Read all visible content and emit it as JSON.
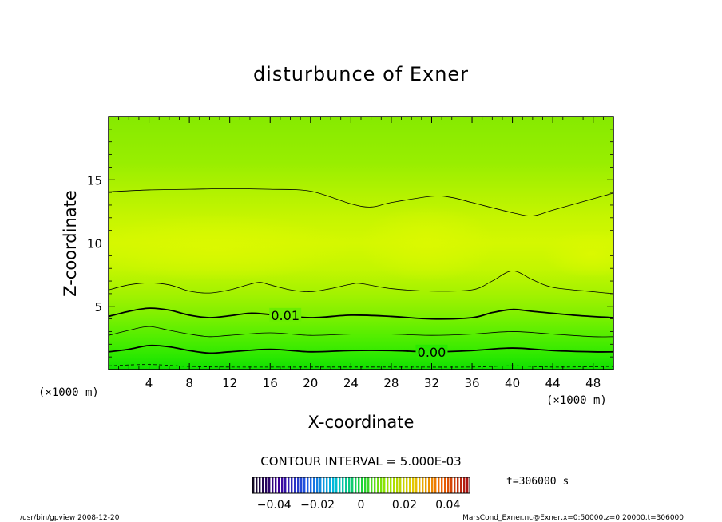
{
  "chart_data": {
    "type": "heatmap",
    "title": "disturbunce of Exner",
    "xlabel": "X-coordinate",
    "ylabel": "Z-coordinate",
    "x_unit_label": "(×1000 m)",
    "y_unit_label": "(×1000 m)",
    "xlim": [
      0,
      50
    ],
    "ylim": [
      0,
      20
    ],
    "x_ticks": [
      4,
      8,
      12,
      16,
      20,
      24,
      28,
      32,
      36,
      40,
      44,
      48
    ],
    "x_tick_labels": [
      "4",
      "8",
      "12",
      "16",
      "20",
      "24",
      "28",
      "32",
      "36",
      "40",
      "44",
      "48"
    ],
    "y_ticks": [
      5,
      10,
      15
    ],
    "y_tick_labels": [
      "5",
      "10",
      "15"
    ],
    "contour_labels": [
      {
        "text": "0.01",
        "x": 17.5,
        "z": 4.3
      },
      {
        "text": "0.00",
        "x": 32.0,
        "z": 1.4
      }
    ],
    "contours": [
      {
        "level": -0.005,
        "style": "dashed",
        "points": [
          [
            0,
            0.3
          ],
          [
            4,
            0.4
          ],
          [
            8,
            0.25
          ],
          [
            12,
            0.2
          ],
          [
            20,
            0.2
          ],
          [
            28,
            0.2
          ],
          [
            36,
            0.2
          ],
          [
            40,
            0.3
          ],
          [
            44,
            0.2
          ],
          [
            50,
            0.25
          ]
        ]
      },
      {
        "level": 0.0,
        "style": "thick",
        "points": [
          [
            0,
            1.4
          ],
          [
            2,
            1.6
          ],
          [
            4,
            1.9
          ],
          [
            6,
            1.8
          ],
          [
            8,
            1.5
          ],
          [
            10,
            1.3
          ],
          [
            12,
            1.4
          ],
          [
            16,
            1.6
          ],
          [
            20,
            1.4
          ],
          [
            24,
            1.5
          ],
          [
            28,
            1.5
          ],
          [
            32,
            1.4
          ],
          [
            36,
            1.5
          ],
          [
            40,
            1.7
          ],
          [
            44,
            1.5
          ],
          [
            48,
            1.4
          ],
          [
            50,
            1.4
          ]
        ]
      },
      {
        "level": 0.005,
        "style": "thin",
        "points": [
          [
            0,
            2.7
          ],
          [
            2,
            3.1
          ],
          [
            4,
            3.4
          ],
          [
            6,
            3.1
          ],
          [
            8,
            2.8
          ],
          [
            10,
            2.6
          ],
          [
            12,
            2.7
          ],
          [
            16,
            2.9
          ],
          [
            20,
            2.7
          ],
          [
            24,
            2.8
          ],
          [
            28,
            2.8
          ],
          [
            32,
            2.7
          ],
          [
            36,
            2.8
          ],
          [
            40,
            3.0
          ],
          [
            44,
            2.8
          ],
          [
            48,
            2.6
          ],
          [
            50,
            2.6
          ]
        ]
      },
      {
        "level": 0.01,
        "style": "thick",
        "points": [
          [
            0,
            4.2
          ],
          [
            2,
            4.6
          ],
          [
            4,
            4.85
          ],
          [
            6,
            4.7
          ],
          [
            8,
            4.3
          ],
          [
            10,
            4.1
          ],
          [
            12,
            4.25
          ],
          [
            14,
            4.45
          ],
          [
            16,
            4.35
          ],
          [
            20,
            4.1
          ],
          [
            24,
            4.3
          ],
          [
            28,
            4.2
          ],
          [
            32,
            4.0
          ],
          [
            36,
            4.1
          ],
          [
            38,
            4.5
          ],
          [
            40,
            4.75
          ],
          [
            42,
            4.6
          ],
          [
            46,
            4.3
          ],
          [
            50,
            4.1
          ]
        ]
      },
      {
        "level": 0.015,
        "style": "thin",
        "points": [
          [
            0,
            6.3
          ],
          [
            2,
            6.7
          ],
          [
            4,
            6.85
          ],
          [
            6,
            6.7
          ],
          [
            8,
            6.2
          ],
          [
            10,
            6.05
          ],
          [
            12,
            6.3
          ],
          [
            14,
            6.75
          ],
          [
            15,
            6.9
          ],
          [
            16,
            6.7
          ],
          [
            18,
            6.3
          ],
          [
            20,
            6.15
          ],
          [
            22,
            6.4
          ],
          [
            24,
            6.75
          ],
          [
            25,
            6.8
          ],
          [
            28,
            6.4
          ],
          [
            32,
            6.2
          ],
          [
            36,
            6.3
          ],
          [
            38,
            7.0
          ],
          [
            40,
            7.8
          ],
          [
            42,
            7.1
          ],
          [
            44,
            6.5
          ],
          [
            48,
            6.15
          ],
          [
            50,
            6.0
          ]
        ]
      },
      {
        "level": 0.015,
        "style": "thin",
        "points": [
          [
            0,
            14.05
          ],
          [
            4,
            14.2
          ],
          [
            8,
            14.25
          ],
          [
            12,
            14.3
          ],
          [
            16,
            14.25
          ],
          [
            20,
            14.1
          ],
          [
            24,
            13.1
          ],
          [
            26,
            12.85
          ],
          [
            28,
            13.2
          ],
          [
            32,
            13.7
          ],
          [
            34,
            13.6
          ],
          [
            36,
            13.2
          ],
          [
            40,
            12.4
          ],
          [
            42,
            12.15
          ],
          [
            44,
            12.6
          ],
          [
            48,
            13.5
          ],
          [
            50,
            13.95
          ]
        ]
      }
    ],
    "contour_interval_text": "CONTOUR INTERVAL = 5.000E-03",
    "colorbar": {
      "min": -0.05,
      "max": 0.05,
      "tick_values": [
        -0.04,
        -0.02,
        0,
        0.02,
        0.04
      ],
      "tick_labels": [
        "−0.04",
        "−0.02",
        "0",
        "0.02",
        "0.04"
      ]
    },
    "time_label": "t=306000 s"
  },
  "footer": {
    "left": "/usr/bin/gpview   2008-12-20",
    "right": "MarsCond_Exner.nc@Exner,x=0:50000,z=0:20000,t=306000"
  }
}
